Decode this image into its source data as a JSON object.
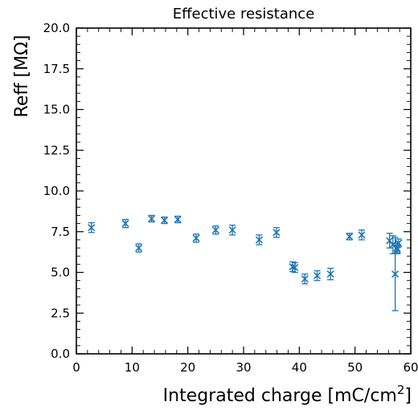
{
  "chart_data": {
    "type": "scatter",
    "title": "Effective resistance",
    "ylabel": "Reff [MΩ]",
    "xlabel_main": "Integrated charge [mC/cm",
    "xlabel_sup": "2",
    "xlabel_tail": "]",
    "xlim": [
      0,
      60
    ],
    "ylim": [
      0,
      20
    ],
    "xticks": [
      0,
      10,
      20,
      30,
      40,
      50,
      60
    ],
    "xtick_labels": [
      "0",
      "10",
      "20",
      "30",
      "40",
      "50",
      "60"
    ],
    "yticks": [
      0,
      2.5,
      5,
      7.5,
      10,
      12.5,
      15,
      17.5,
      20
    ],
    "ytick_labels": [
      "0.0",
      "2.5",
      "5.0",
      "7.5",
      "10.0",
      "12.5",
      "15.0",
      "17.5",
      "20.0"
    ],
    "marker": "x",
    "color": "#1f77b4",
    "points": [
      {
        "x": 2.7,
        "y": 7.75,
        "err": 0.3
      },
      {
        "x": 8.8,
        "y": 8.0,
        "err": 0.25
      },
      {
        "x": 11.2,
        "y": 6.5,
        "err": 0.25
      },
      {
        "x": 13.5,
        "y": 8.3,
        "err": 0.2
      },
      {
        "x": 15.8,
        "y": 8.2,
        "err": 0.2
      },
      {
        "x": 18.2,
        "y": 8.25,
        "err": 0.2
      },
      {
        "x": 21.5,
        "y": 7.1,
        "err": 0.25
      },
      {
        "x": 25.0,
        "y": 7.6,
        "err": 0.25
      },
      {
        "x": 28.0,
        "y": 7.6,
        "err": 0.3
      },
      {
        "x": 32.8,
        "y": 7.0,
        "err": 0.3
      },
      {
        "x": 35.9,
        "y": 7.45,
        "err": 0.3
      },
      {
        "x": 38.8,
        "y": 5.35,
        "err": 0.3
      },
      {
        "x": 39.2,
        "y": 5.3,
        "err": 0.3
      },
      {
        "x": 41.0,
        "y": 4.6,
        "err": 0.3
      },
      {
        "x": 43.2,
        "y": 4.8,
        "err": 0.3
      },
      {
        "x": 45.6,
        "y": 4.9,
        "err": 0.35
      },
      {
        "x": 49.0,
        "y": 7.2,
        "err": 0.2
      },
      {
        "x": 51.2,
        "y": 7.3,
        "err": 0.3
      },
      {
        "x": 56.2,
        "y": 6.95,
        "err": 0.45
      },
      {
        "x": 56.8,
        "y": 6.7,
        "err": 0.55
      },
      {
        "x": 57.2,
        "y": 4.9,
        "err": 2.25
      },
      {
        "x": 57.5,
        "y": 6.5,
        "err": 0.3
      },
      {
        "x": 57.8,
        "y": 6.8,
        "err": 0.25
      },
      {
        "x": 57.6,
        "y": 6.4,
        "err": 0.25
      }
    ]
  }
}
